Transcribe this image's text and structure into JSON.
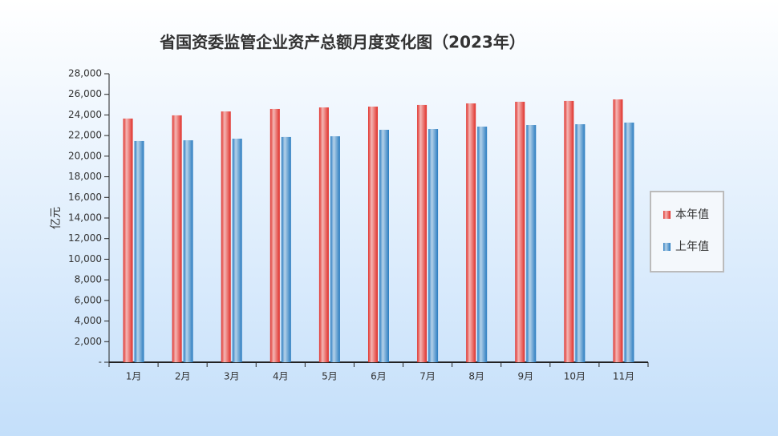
{
  "chart_data": {
    "type": "bar",
    "title": "省国资委监管企业资产总额月度变化图（2023年）",
    "y_label": "亿元",
    "categories": [
      "1月",
      "2月",
      "3月",
      "4月",
      "5月",
      "6月",
      "7月",
      "8月",
      "9月",
      "10月",
      "11月"
    ],
    "series": [
      {
        "name": "本年值",
        "color": "#e0302a",
        "values": [
          23650,
          23960,
          24340,
          24580,
          24730,
          24810,
          24970,
          25120,
          25280,
          25360,
          25510
        ]
      },
      {
        "name": "上年值",
        "color": "#2a7cc0",
        "values": [
          21470,
          21540,
          21700,
          21860,
          21930,
          22560,
          22630,
          22870,
          23020,
          23100,
          23260
        ]
      }
    ],
    "ylim": [
      0,
      28000
    ],
    "yticks": [
      {
        "value": 0,
        "label": "-"
      },
      {
        "value": 2000,
        "label": "2,000"
      },
      {
        "value": 4000,
        "label": "4,000"
      },
      {
        "value": 6000,
        "label": "6,000"
      },
      {
        "value": 8000,
        "label": "8,000"
      },
      {
        "value": 10000,
        "label": "10,000"
      },
      {
        "value": 12000,
        "label": "12,000"
      },
      {
        "value": 14000,
        "label": "14,000"
      },
      {
        "value": 16000,
        "label": "16,000"
      },
      {
        "value": 18000,
        "label": "18,000"
      },
      {
        "value": 20000,
        "label": "20,000"
      },
      {
        "value": 22000,
        "label": "22,000"
      },
      {
        "value": 24000,
        "label": "24,000"
      },
      {
        "value": 26000,
        "label": "26,000"
      },
      {
        "value": 28000,
        "label": "28,000"
      }
    ],
    "legend": "right"
  }
}
